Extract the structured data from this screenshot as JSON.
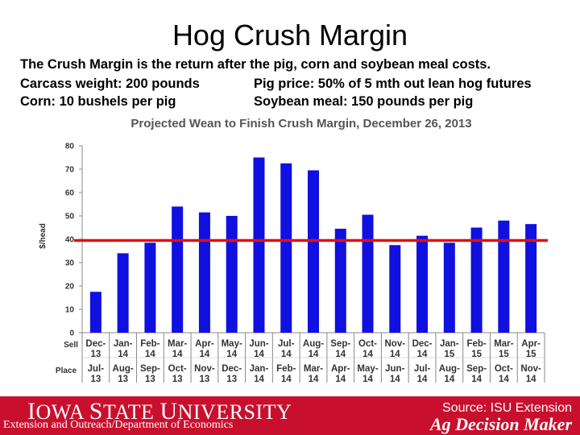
{
  "slide_title": "Hog Crush Margin",
  "description": {
    "line1": "The Crush Margin is the return after the pig, corn and soybean meal costs.",
    "carcass": "Carcass weight:  200 pounds",
    "pig_price": "Pig price:  50% of 5 mth out lean hog futures",
    "corn": "Corn:  10 bushels per pig",
    "soybean": "Soybean meal:  150 pounds per pig"
  },
  "chart_data": {
    "type": "bar",
    "title": "Projected Wean to Finish Crush Margin, December 26, 2013",
    "ylabel": "$/head",
    "ylim": [
      0,
      80
    ],
    "yticks": [
      0,
      10,
      20,
      30,
      40,
      50,
      60,
      70,
      80
    ],
    "grid": false,
    "reference_line": 39.5,
    "row_labels": {
      "sell": "Sell",
      "place": "Place"
    },
    "sell": [
      [
        "Dec-",
        "13"
      ],
      [
        "Jan-",
        "14"
      ],
      [
        "Feb-",
        "14"
      ],
      [
        "Mar-",
        "14"
      ],
      [
        "Apr-",
        "14"
      ],
      [
        "May-",
        "14"
      ],
      [
        "Jun-",
        "14"
      ],
      [
        "Jul-",
        "14"
      ],
      [
        "Aug-",
        "14"
      ],
      [
        "Sep-",
        "14"
      ],
      [
        "Oct-",
        "14"
      ],
      [
        "Nov-",
        "14"
      ],
      [
        "Dec-",
        "14"
      ],
      [
        "Jan-",
        "15"
      ],
      [
        "Feb-",
        "15"
      ],
      [
        "Mar-",
        "15"
      ],
      [
        "Apr-",
        "15"
      ]
    ],
    "place": [
      [
        "Jul-",
        "13"
      ],
      [
        "Aug-",
        "13"
      ],
      [
        "Sep-",
        "13"
      ],
      [
        "Oct-",
        "13"
      ],
      [
        "Nov-",
        "13"
      ],
      [
        "Dec-",
        "13"
      ],
      [
        "Jan-",
        "14"
      ],
      [
        "Feb-",
        "14"
      ],
      [
        "Mar-",
        "14"
      ],
      [
        "Apr-",
        "14"
      ],
      [
        "May-",
        "14"
      ],
      [
        "Jun-",
        "14"
      ],
      [
        "Jul-",
        "14"
      ],
      [
        "Aug-",
        "14"
      ],
      [
        "Sep-",
        "14"
      ],
      [
        "Oct-",
        "14"
      ],
      [
        "Nov-",
        "14"
      ]
    ],
    "values": [
      17.5,
      34,
      38.5,
      54,
      51.5,
      50,
      75,
      72.5,
      69.5,
      44.5,
      50.5,
      37.5,
      41.5,
      38.5,
      45,
      48,
      46.5
    ],
    "bar_color": "#1010e0",
    "line_color": "#e01010"
  },
  "footer": {
    "university_big_1": "I",
    "university_small_1": "OWA ",
    "university_big_2": "S",
    "university_small_2": "TATE ",
    "university_big_3": "U",
    "university_small_3": "NIVERSITY",
    "department": "Extension and Outreach/Department of Economics",
    "source": "Source: ISU Extension",
    "brand": "Ag Decision Maker"
  }
}
